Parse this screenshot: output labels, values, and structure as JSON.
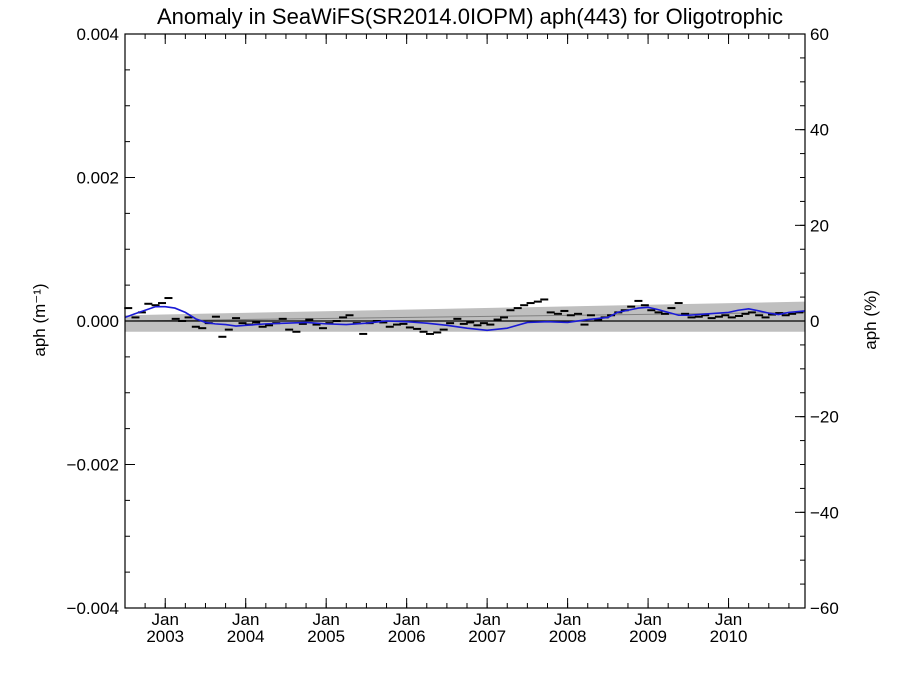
{
  "chart_data": {
    "type": "line",
    "title": "Anomaly in SeaWiFS(SR2014.0IOPM) aph(443) for Oligotrophic",
    "ylabel_left": "aph (m⁻¹)",
    "ylabel_right": "aph (%)",
    "ylim_left": [
      -0.004,
      0.004
    ],
    "ylim_right": [
      -60,
      60
    ],
    "xlim": [
      2002.5,
      2010.95
    ],
    "y_ticks_left": [
      "0.004",
      "0.002",
      "0.000",
      "−0.002",
      "−0.004"
    ],
    "y_ticks_right": [
      "60",
      "40",
      "20",
      "0",
      "−20",
      "−40",
      "−60"
    ],
    "x_tick_month": "Jan",
    "x_ticks_years": [
      "2003",
      "2004",
      "2005",
      "2006",
      "2007",
      "2008",
      "2009",
      "2010"
    ],
    "grid": false,
    "colors": {
      "smooth": "#1a1ad6",
      "band": "#bfbfbf",
      "points": "#000000",
      "zero_line": "#000000"
    },
    "trend_band": {
      "lower": [
        [
          2002.5,
          -0.00015
        ],
        [
          2010.95,
          -0.00015
        ]
      ],
      "upper": [
        [
          2002.5,
          8e-05
        ],
        [
          2010.95,
          0.00027
        ]
      ],
      "center": [
        [
          2002.5,
          0.0
        ],
        [
          2010.95,
          0.00012
        ]
      ]
    },
    "series": [
      {
        "kind": "monthly",
        "x": [
          2002.54,
          2002.63,
          2002.71,
          2002.79,
          2002.88,
          2002.96,
          2003.04,
          2003.13,
          2003.21,
          2003.29,
          2003.38,
          2003.46,
          2003.54,
          2003.63,
          2003.71,
          2003.79,
          2003.88,
          2003.96,
          2004.04,
          2004.13,
          2004.21,
          2004.29,
          2004.38,
          2004.46,
          2004.54,
          2004.63,
          2004.71,
          2004.79,
          2004.88,
          2004.96,
          2005.04,
          2005.13,
          2005.21,
          2005.29,
          2005.38,
          2005.46,
          2005.54,
          2005.63,
          2005.71,
          2005.79,
          2005.88,
          2005.96,
          2006.04,
          2006.13,
          2006.21,
          2006.29,
          2006.38,
          2006.46,
          2006.54,
          2006.63,
          2006.71,
          2006.79,
          2006.88,
          2006.96,
          2007.04,
          2007.13,
          2007.21,
          2007.29,
          2007.38,
          2007.46,
          2007.54,
          2007.63,
          2007.71,
          2007.79,
          2007.88,
          2007.96,
          2008.04,
          2008.13,
          2008.21,
          2008.29,
          2008.38,
          2008.46,
          2008.54,
          2008.63,
          2008.71,
          2008.79,
          2008.88,
          2008.96,
          2009.04,
          2009.13,
          2009.21,
          2009.29,
          2009.38,
          2009.46,
          2009.54,
          2009.63,
          2009.71,
          2009.79,
          2009.88,
          2009.96,
          2010.04,
          2010.13,
          2010.21,
          2010.29,
          2010.38,
          2010.46,
          2010.54,
          2010.63,
          2010.71,
          2010.79,
          2010.88
        ],
        "y": [
          0.00018,
          5e-05,
          0.00012,
          0.00024,
          0.00022,
          0.00025,
          0.00032,
          3e-05,
          0.0,
          5e-05,
          -8e-05,
          -0.0001,
          -3e-05,
          6e-05,
          -0.00022,
          -0.00012,
          4e-05,
          -3e-05,
          -5e-05,
          -2e-05,
          -8e-05,
          -6e-05,
          -3e-05,
          3e-05,
          -0.00012,
          -0.00015,
          -4e-05,
          2e-05,
          -5e-05,
          -0.0001,
          -3e-05,
          0.0,
          5e-05,
          8e-05,
          -3e-05,
          -0.00018,
          -3e-05,
          0.0,
          -2e-05,
          -8e-05,
          -5e-05,
          -4e-05,
          -9e-05,
          -0.00011,
          -0.00015,
          -0.00018,
          -0.00016,
          -0.00012,
          -3e-05,
          3e-05,
          -4e-05,
          -2e-05,
          -6e-05,
          -3e-05,
          -5e-05,
          2e-05,
          5e-05,
          0.00015,
          0.00018,
          0.00022,
          0.00025,
          0.00027,
          0.0003,
          0.00012,
          0.0001,
          0.00014,
          8e-05,
          0.0001,
          -5e-05,
          8e-05,
          2e-05,
          5e-05,
          8e-05,
          0.00012,
          0.00015,
          0.0002,
          0.00028,
          0.00022,
          0.00015,
          0.00012,
          0.0001,
          0.00018,
          0.00025,
          0.0001,
          5e-05,
          6e-05,
          8e-05,
          4e-05,
          6e-05,
          8e-05,
          5e-05,
          7e-05,
          0.0001,
          0.00012,
          8e-05,
          5e-05,
          9e-05,
          0.00011,
          8e-05,
          0.0001,
          0.00012
        ]
      },
      {
        "kind": "smoothed",
        "x": [
          2002.5,
          2002.62,
          2002.75,
          2002.88,
          2003.0,
          2003.12,
          2003.25,
          2003.38,
          2003.5,
          2003.62,
          2003.75,
          2003.88,
          2004.0,
          2004.25,
          2004.5,
          2004.75,
          2005.0,
          2005.25,
          2005.5,
          2005.75,
          2006.0,
          2006.25,
          2006.5,
          2006.75,
          2007.0,
          2007.25,
          2007.5,
          2007.75,
          2008.0,
          2008.25,
          2008.5,
          2008.62,
          2008.75,
          2008.88,
          2009.0,
          2009.12,
          2009.25,
          2009.38,
          2009.5,
          2009.75,
          2010.0,
          2010.12,
          2010.25,
          2010.38,
          2010.5,
          2010.62,
          2010.75,
          2010.95
        ],
        "y": [
          5e-05,
          0.0001,
          0.00015,
          0.0002,
          0.0002,
          0.00018,
          0.00012,
          3e-05,
          -2e-05,
          -4e-05,
          -5e-05,
          -7e-05,
          -6e-05,
          -4e-05,
          -3e-05,
          -2e-05,
          -4e-05,
          -5e-05,
          -3e-05,
          0.0,
          -1e-05,
          -3e-05,
          -6e-05,
          -0.0001,
          -0.00013,
          -0.0001,
          -2e-05,
          -1e-05,
          -2e-05,
          2e-05,
          5e-05,
          0.00012,
          0.00015,
          0.00018,
          0.00019,
          0.00016,
          0.00012,
          8e-05,
          8e-05,
          0.0001,
          0.00012,
          0.00015,
          0.00017,
          0.00014,
          0.00011,
          9e-05,
          0.00012,
          0.00014
        ]
      }
    ]
  }
}
